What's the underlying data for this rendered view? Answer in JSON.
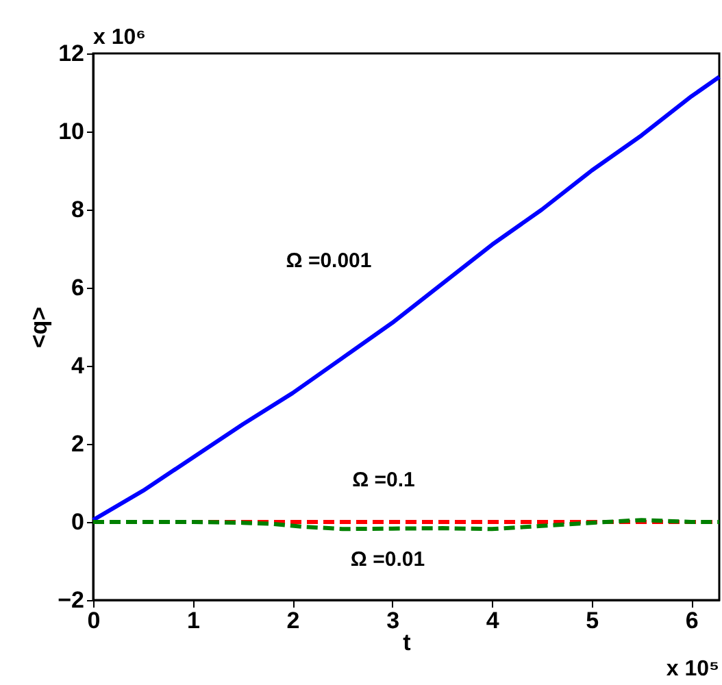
{
  "chart_data": {
    "type": "line",
    "xlabel": "t",
    "ylabel": "<q>",
    "xlim": [
      0,
      6.28
    ],
    "xticks": [
      0,
      1,
      2,
      3,
      4,
      5,
      6
    ],
    "ylim": [
      -2,
      12
    ],
    "yticks": [
      -2,
      0,
      2,
      4,
      6,
      8,
      10,
      12
    ],
    "series": [
      {
        "name": "Ω =0.001",
        "color": "#0000ff",
        "line_style": "solid",
        "x": [
          0,
          0.5,
          1,
          1.5,
          2,
          2.5,
          3,
          3.5,
          4,
          4.5,
          5,
          5.5,
          6,
          6.28
        ],
        "values": [
          0.05,
          0.8,
          1.65,
          2.5,
          3.3,
          4.2,
          5.1,
          6.1,
          7.1,
          8.0,
          9.0,
          9.9,
          10.9,
          11.4
        ]
      },
      {
        "name": "Ω =0.1",
        "color": "#ff0000",
        "line_style": "dashed",
        "x": [
          0,
          1,
          2,
          3,
          4,
          5,
          6,
          6.28
        ],
        "values": [
          0,
          0,
          0,
          0,
          0,
          0,
          0,
          0
        ]
      },
      {
        "name": "Ω =0.01",
        "color": "#008000",
        "line_style": "dashed",
        "x": [
          0,
          0.5,
          1,
          1.5,
          1.8,
          2.1,
          2.5,
          3,
          3.5,
          4,
          4.5,
          5,
          5.5,
          6,
          6.28
        ],
        "values": [
          0,
          0,
          0,
          -0.02,
          -0.05,
          -0.12,
          -0.18,
          -0.17,
          -0.16,
          -0.18,
          -0.1,
          -0.02,
          0.05,
          0,
          0
        ]
      }
    ],
    "annotations": [
      "x 10⁶",
      "x 10⁵"
    ]
  }
}
